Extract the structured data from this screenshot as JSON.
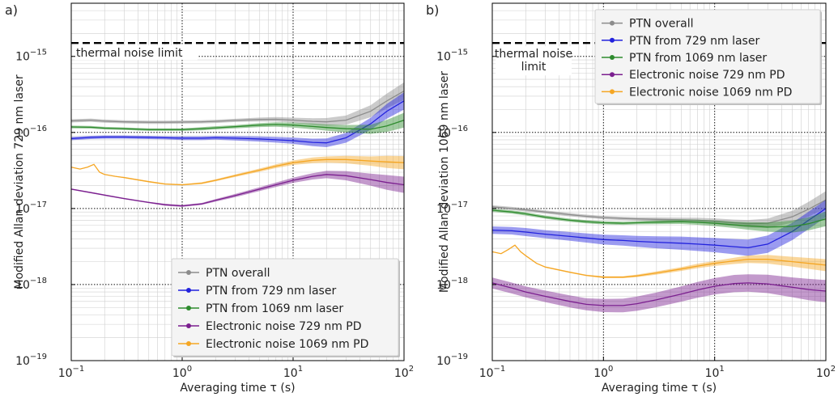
{
  "chart_data": [
    {
      "panel_label": "a)",
      "type": "line",
      "xscale": "log",
      "yscale": "log",
      "xlim": [
        0.1,
        100
      ],
      "ylim": [
        1e-19,
        5e-15
      ],
      "xlabel": "Averaging time τ (s)",
      "ylabel": "Modified Allan deviation 729 nm laser",
      "xticks": [
        {
          "v": 0.1,
          "b": "10",
          "e": "−1"
        },
        {
          "v": 1,
          "b": "10",
          "e": "0"
        },
        {
          "v": 10,
          "b": "10",
          "e": "1"
        },
        {
          "v": 100,
          "b": "10",
          "e": "2"
        }
      ],
      "yticks": [
        {
          "v": 1e-19,
          "b": "10",
          "e": "−19"
        },
        {
          "v": 1e-18,
          "b": "10",
          "e": "−18"
        },
        {
          "v": 1e-17,
          "b": "10",
          "e": "−17"
        },
        {
          "v": 1e-16,
          "b": "10",
          "e": "−16"
        },
        {
          "v": 1e-15,
          "b": "10",
          "e": "−15"
        }
      ],
      "limit_line": {
        "value": 1.5e-15,
        "label": "thermal noise limit"
      },
      "legend_position": "lower-right",
      "series": [
        {
          "name": "PTN overall",
          "color": "#8c8c8c",
          "x": [
            0.1,
            0.15,
            0.2,
            0.3,
            0.5,
            0.7,
            1,
            1.5,
            2,
            3,
            5,
            7,
            10,
            15,
            20,
            30,
            50,
            70,
            100
          ],
          "y": [
            1.42e-16,
            1.45e-16,
            1.41e-16,
            1.38e-16,
            1.36e-16,
            1.36e-16,
            1.37e-16,
            1.38e-16,
            1.4e-16,
            1.44e-16,
            1.48e-16,
            1.49e-16,
            1.45e-16,
            1.4e-16,
            1.38e-16,
            1.45e-16,
            1.9e-16,
            2.6e-16,
            3.5e-16
          ],
          "band": [
            1.05,
            1.05,
            1.05,
            1.05,
            1.05,
            1.05,
            1.05,
            1.05,
            1.05,
            1.05,
            1.06,
            1.07,
            1.08,
            1.1,
            1.12,
            1.15,
            1.2,
            1.25,
            1.3
          ]
        },
        {
          "name": "PTN from 729 nm laser",
          "color": "#2222dd",
          "x": [
            0.1,
            0.15,
            0.2,
            0.3,
            0.5,
            0.7,
            1,
            1.5,
            2,
            3,
            5,
            7,
            10,
            15,
            20,
            30,
            50,
            70,
            100
          ],
          "y": [
            8.3e-17,
            8.6e-17,
            8.7e-17,
            8.7e-17,
            8.6e-17,
            8.5e-17,
            8.4e-17,
            8.4e-17,
            8.5e-17,
            8.4e-17,
            8.2e-17,
            8e-17,
            7.8e-17,
            7.4e-17,
            7.3e-17,
            8.5e-17,
            1.3e-16,
            1.9e-16,
            2.6e-16
          ],
          "band": [
            1.05,
            1.05,
            1.05,
            1.05,
            1.05,
            1.05,
            1.06,
            1.06,
            1.06,
            1.07,
            1.08,
            1.09,
            1.1,
            1.12,
            1.14,
            1.16,
            1.2,
            1.25,
            1.3
          ]
        },
        {
          "name": "PTN from 1069 nm laser",
          "color": "#2e8b2e",
          "x": [
            0.1,
            0.15,
            0.2,
            0.3,
            0.5,
            0.7,
            1,
            1.5,
            2,
            3,
            5,
            7,
            10,
            15,
            20,
            30,
            50,
            70,
            100
          ],
          "y": [
            1.18e-16,
            1.17e-16,
            1.14e-16,
            1.12e-16,
            1.09e-16,
            1.09e-16,
            1.09e-16,
            1.12e-16,
            1.15e-16,
            1.19e-16,
            1.25e-16,
            1.27e-16,
            1.25e-16,
            1.2e-16,
            1.16e-16,
            1.12e-16,
            1.1e-16,
            1.22e-16,
            1.45e-16
          ],
          "band": [
            1.04,
            1.04,
            1.04,
            1.04,
            1.04,
            1.04,
            1.04,
            1.05,
            1.05,
            1.05,
            1.06,
            1.07,
            1.08,
            1.09,
            1.1,
            1.12,
            1.15,
            1.2,
            1.25
          ]
        },
        {
          "name": "Electronic noise 729 nm PD",
          "color": "#7b1f8f",
          "x": [
            0.1,
            0.15,
            0.2,
            0.3,
            0.5,
            0.7,
            1,
            1.5,
            2,
            3,
            5,
            7,
            10,
            15,
            20,
            30,
            50,
            70,
            100
          ],
          "y": [
            1.8e-17,
            1.62e-17,
            1.5e-17,
            1.35e-17,
            1.2e-17,
            1.12e-17,
            1.08e-17,
            1.15e-17,
            1.28e-17,
            1.48e-17,
            1.8e-17,
            2.05e-17,
            2.35e-17,
            2.65e-17,
            2.8e-17,
            2.7e-17,
            2.4e-17,
            2.2e-17,
            2.05e-17
          ],
          "band": [
            1.02,
            1.02,
            1.02,
            1.02,
            1.02,
            1.03,
            1.03,
            1.03,
            1.04,
            1.05,
            1.06,
            1.07,
            1.08,
            1.1,
            1.12,
            1.15,
            1.2,
            1.25,
            1.28
          ]
        },
        {
          "name": "Electronic noise 1069 nm PD",
          "color": "#f5a623",
          "x": [
            0.1,
            0.12,
            0.14,
            0.16,
            0.18,
            0.2,
            0.25,
            0.3,
            0.5,
            0.7,
            1,
            1.5,
            2,
            3,
            5,
            7,
            10,
            15,
            20,
            30,
            50,
            70,
            100
          ],
          "y": [
            3.5e-17,
            3.3e-17,
            3.5e-17,
            3.8e-17,
            3e-17,
            2.8e-17,
            2.65e-17,
            2.55e-17,
            2.25e-17,
            2.1e-17,
            2.05e-17,
            2.15e-17,
            2.35e-17,
            2.7e-17,
            3.2e-17,
            3.6e-17,
            4e-17,
            4.3e-17,
            4.4e-17,
            4.4e-17,
            4.2e-17,
            4.1e-17,
            4e-17
          ],
          "band": [
            1.0,
            1.0,
            1.0,
            1.0,
            1.0,
            1.01,
            1.01,
            1.02,
            1.02,
            1.02,
            1.02,
            1.03,
            1.03,
            1.04,
            1.05,
            1.06,
            1.07,
            1.09,
            1.1,
            1.12,
            1.15,
            1.2,
            1.22
          ]
        }
      ]
    },
    {
      "panel_label": "b)",
      "type": "line",
      "xscale": "log",
      "yscale": "log",
      "xlim": [
        0.1,
        100
      ],
      "ylim": [
        1e-19,
        5e-15
      ],
      "xlabel": "Averaging time τ (s)",
      "ylabel": "Modified Allan deviation 1069 nm laser",
      "xticks": [
        {
          "v": 0.1,
          "b": "10",
          "e": "−1"
        },
        {
          "v": 1,
          "b": "10",
          "e": "0"
        },
        {
          "v": 10,
          "b": "10",
          "e": "1"
        },
        {
          "v": 100,
          "b": "10",
          "e": "2"
        }
      ],
      "yticks": [
        {
          "v": 1e-19,
          "b": "10",
          "e": "−19"
        },
        {
          "v": 1e-18,
          "b": "10",
          "e": "−18"
        },
        {
          "v": 1e-17,
          "b": "10",
          "e": "−17"
        },
        {
          "v": 1e-16,
          "b": "10",
          "e": "−16"
        },
        {
          "v": 1e-15,
          "b": "10",
          "e": "−15"
        }
      ],
      "limit_line": {
        "value": 1.5e-15,
        "label_lines": [
          "thermal noise",
          "limit"
        ]
      },
      "legend_position": "upper-right",
      "series": [
        {
          "name": "PTN overall",
          "color": "#8c8c8c",
          "x": [
            0.1,
            0.15,
            0.2,
            0.3,
            0.5,
            0.7,
            1,
            1.5,
            2,
            3,
            5,
            7,
            10,
            15,
            20,
            30,
            50,
            70,
            100
          ],
          "y": [
            1.05e-17,
            1e-17,
            9.6e-18,
            9e-18,
            8.3e-18,
            7.9e-18,
            7.6e-18,
            7.4e-18,
            7.3e-18,
            7.2e-18,
            7.1e-18,
            7e-18,
            6.8e-18,
            6.5e-18,
            6.3e-18,
            6.4e-18,
            7.8e-18,
            9.8e-18,
            1.3e-17
          ],
          "band": [
            1.05,
            1.05,
            1.05,
            1.05,
            1.05,
            1.05,
            1.05,
            1.05,
            1.05,
            1.06,
            1.07,
            1.08,
            1.09,
            1.1,
            1.12,
            1.15,
            1.2,
            1.25,
            1.3
          ]
        },
        {
          "name": "PTN from 729 nm laser",
          "color": "#2222dd",
          "x": [
            0.1,
            0.15,
            0.2,
            0.3,
            0.5,
            0.7,
            1,
            1.5,
            2,
            3,
            5,
            7,
            10,
            15,
            20,
            30,
            50,
            70,
            100
          ],
          "y": [
            5.2e-18,
            5.1e-18,
            4.9e-18,
            4.6e-18,
            4.3e-18,
            4.1e-18,
            3.9e-18,
            3.8e-18,
            3.7e-18,
            3.6e-18,
            3.5e-18,
            3.4e-18,
            3.3e-18,
            3.15e-18,
            3.05e-18,
            3.4e-18,
            5e-18,
            7e-18,
            1e-17
          ],
          "band": [
            1.12,
            1.12,
            1.13,
            1.13,
            1.14,
            1.15,
            1.16,
            1.17,
            1.18,
            1.2,
            1.22,
            1.23,
            1.24,
            1.26,
            1.28,
            1.3,
            1.3,
            1.3,
            1.3
          ]
        },
        {
          "name": "PTN from 1069 nm laser",
          "color": "#2e8b2e",
          "x": [
            0.1,
            0.15,
            0.2,
            0.3,
            0.5,
            0.7,
            1,
            1.5,
            2,
            3,
            5,
            7,
            10,
            15,
            20,
            30,
            50,
            70,
            100
          ],
          "y": [
            9.5e-18,
            9e-18,
            8.5e-18,
            7.7e-18,
            7e-18,
            6.7e-18,
            6.5e-18,
            6.4e-18,
            6.5e-18,
            6.6e-18,
            6.7e-18,
            6.6e-18,
            6.4e-18,
            6.1e-18,
            5.9e-18,
            5.7e-18,
            5.8e-18,
            6.3e-18,
            7.3e-18
          ],
          "band": [
            1.05,
            1.05,
            1.05,
            1.05,
            1.05,
            1.05,
            1.05,
            1.05,
            1.05,
            1.06,
            1.07,
            1.08,
            1.09,
            1.1,
            1.12,
            1.15,
            1.2,
            1.22,
            1.25
          ]
        },
        {
          "name": "Electronic noise 729 nm PD",
          "color": "#7b1f8f",
          "x": [
            0.1,
            0.15,
            0.2,
            0.3,
            0.5,
            0.7,
            1,
            1.5,
            2,
            3,
            5,
            7,
            10,
            15,
            20,
            30,
            50,
            70,
            100
          ],
          "y": [
            1.05e-18,
            9e-19,
            8e-19,
            7e-19,
            6e-19,
            5.5e-19,
            5.3e-19,
            5.3e-19,
            5.6e-19,
            6.3e-19,
            7.5e-19,
            8.5e-19,
            9.5e-19,
            1.03e-18,
            1.05e-18,
            1.02e-18,
            9.2e-19,
            8.6e-19,
            8.2e-19
          ],
          "band": [
            1.18,
            1.18,
            1.18,
            1.19,
            1.2,
            1.2,
            1.22,
            1.23,
            1.24,
            1.25,
            1.26,
            1.27,
            1.28,
            1.3,
            1.3,
            1.32,
            1.35,
            1.38,
            1.4
          ]
        },
        {
          "name": "Electronic noise 1069 nm PD",
          "color": "#f5a623",
          "x": [
            0.1,
            0.12,
            0.14,
            0.16,
            0.18,
            0.2,
            0.25,
            0.3,
            0.5,
            0.7,
            1,
            1.5,
            2,
            3,
            5,
            7,
            10,
            15,
            20,
            30,
            50,
            70,
            100
          ],
          "y": [
            2.7e-18,
            2.55e-18,
            2.9e-18,
            3.3e-18,
            2.7e-18,
            2.4e-18,
            1.9e-18,
            1.7e-18,
            1.45e-18,
            1.32e-18,
            1.25e-18,
            1.25e-18,
            1.3e-18,
            1.42e-18,
            1.6e-18,
            1.75e-18,
            1.9e-18,
            2.05e-18,
            2.15e-18,
            2.15e-18,
            2e-18,
            1.9e-18,
            1.8e-18
          ],
          "band": [
            1.0,
            1.0,
            1.0,
            1.0,
            1.0,
            1.01,
            1.01,
            1.02,
            1.02,
            1.02,
            1.03,
            1.03,
            1.04,
            1.05,
            1.06,
            1.07,
            1.08,
            1.1,
            1.12,
            1.14,
            1.16,
            1.18,
            1.2
          ]
        }
      ]
    }
  ]
}
